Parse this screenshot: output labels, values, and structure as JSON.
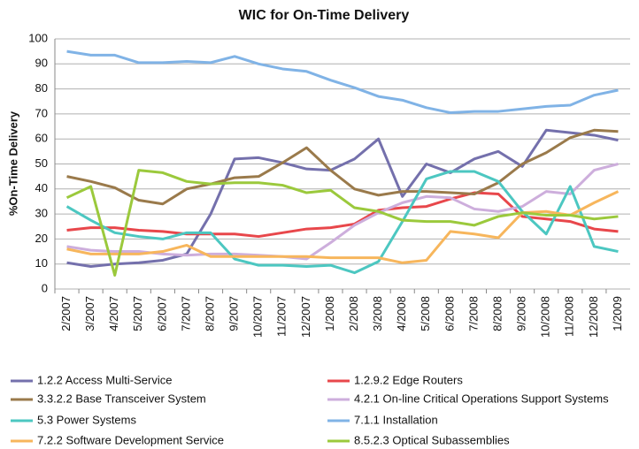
{
  "chart_data": {
    "type": "line",
    "title": "WIC for On-Time Delivery",
    "y_label": "%On-Time Delivery",
    "categories": [
      "2/2007",
      "3/2007",
      "4/2007",
      "5/2007",
      "6/2007",
      "7/2007",
      "8/2007",
      "9/2007",
      "10/2007",
      "11/2007",
      "12/2007",
      "1/2008",
      "2/2008",
      "3/2008",
      "4/2008",
      "5/2008",
      "6/2008",
      "7/2008",
      "8/2008",
      "9/2008",
      "10/2008",
      "11/2008",
      "12/2008",
      "1/2009"
    ],
    "ylim": [
      0,
      100
    ],
    "yticks": [
      0,
      10,
      20,
      30,
      40,
      50,
      60,
      70,
      80,
      90,
      100
    ],
    "grid": true,
    "legend": "bottom",
    "series": [
      {
        "name": "1.2.2 Access Multi-Service",
        "color": "#7470ac",
        "values": [
          10.5,
          9,
          10,
          10.5,
          11.5,
          14,
          30,
          52,
          52.5,
          50.5,
          48,
          47.5,
          52,
          60,
          37,
          50,
          46.5,
          52,
          55,
          49,
          63.5,
          62.5,
          61.5,
          59.5
        ]
      },
      {
        "name": "1.2.9.2 Edge Routers",
        "color": "#e8474b",
        "values": [
          23.5,
          24.5,
          24.5,
          23.5,
          23,
          22,
          22,
          22,
          21,
          22.5,
          24,
          24.5,
          26,
          31.5,
          32.5,
          33,
          36,
          38.5,
          38,
          29,
          28,
          27,
          24,
          23
        ]
      },
      {
        "name": "3.3.2.2 Base Transceiver System",
        "color": "#9a7a4b",
        "values": [
          45,
          43,
          40.5,
          35.5,
          34,
          40,
          42,
          44.5,
          45,
          50.5,
          56.5,
          47.5,
          40,
          37.5,
          39,
          39,
          38.5,
          38,
          42.5,
          50,
          54.5,
          60.5,
          63.5,
          63
        ]
      },
      {
        "name": "4.2.1 On-line Critical Operations Support Systems",
        "color": "#cdaedc",
        "values": [
          17,
          15.5,
          15,
          15,
          14,
          13.5,
          14,
          14,
          13.5,
          13,
          12,
          18.5,
          25.5,
          30.5,
          34.5,
          37,
          36.5,
          32,
          31,
          33,
          39,
          38,
          47.5,
          50
        ]
      },
      {
        "name": "5.3 Power Systems",
        "color": "#4cc7c1",
        "values": [
          33,
          27.5,
          22.5,
          21,
          20,
          22.5,
          22.5,
          12,
          9.5,
          9.5,
          9,
          9.5,
          6.5,
          11,
          27,
          44,
          47,
          47,
          43,
          31,
          22,
          41,
          17,
          15
        ]
      },
      {
        "name": "7.1.1 Installation",
        "color": "#80b3e6",
        "values": [
          95,
          93.5,
          93.5,
          90.5,
          90.5,
          91,
          90.5,
          93,
          90,
          88,
          87,
          83.5,
          80.5,
          77,
          75.5,
          72.5,
          70.5,
          71,
          71,
          72,
          73,
          73.5,
          77.5,
          79.5
        ]
      },
      {
        "name": "7.2.2 Software Development Service",
        "color": "#f7b65c",
        "values": [
          16,
          14,
          14,
          14,
          15,
          17.5,
          13,
          13,
          13,
          13,
          13,
          12.5,
          12.5,
          12.5,
          10.5,
          11.5,
          23,
          22,
          20.5,
          30.5,
          31,
          29.5,
          34.5,
          39
        ]
      },
      {
        "name": "8.5.2.3 Optical Subassemblies",
        "color": "#9bc93c",
        "values": [
          36.5,
          41,
          5.5,
          47.5,
          46.5,
          43,
          42,
          42.5,
          42.5,
          41.5,
          38.5,
          39.5,
          32.5,
          31,
          27.5,
          27,
          27,
          25.5,
          29,
          30.5,
          29.5,
          29.5,
          28,
          29
        ]
      }
    ]
  }
}
